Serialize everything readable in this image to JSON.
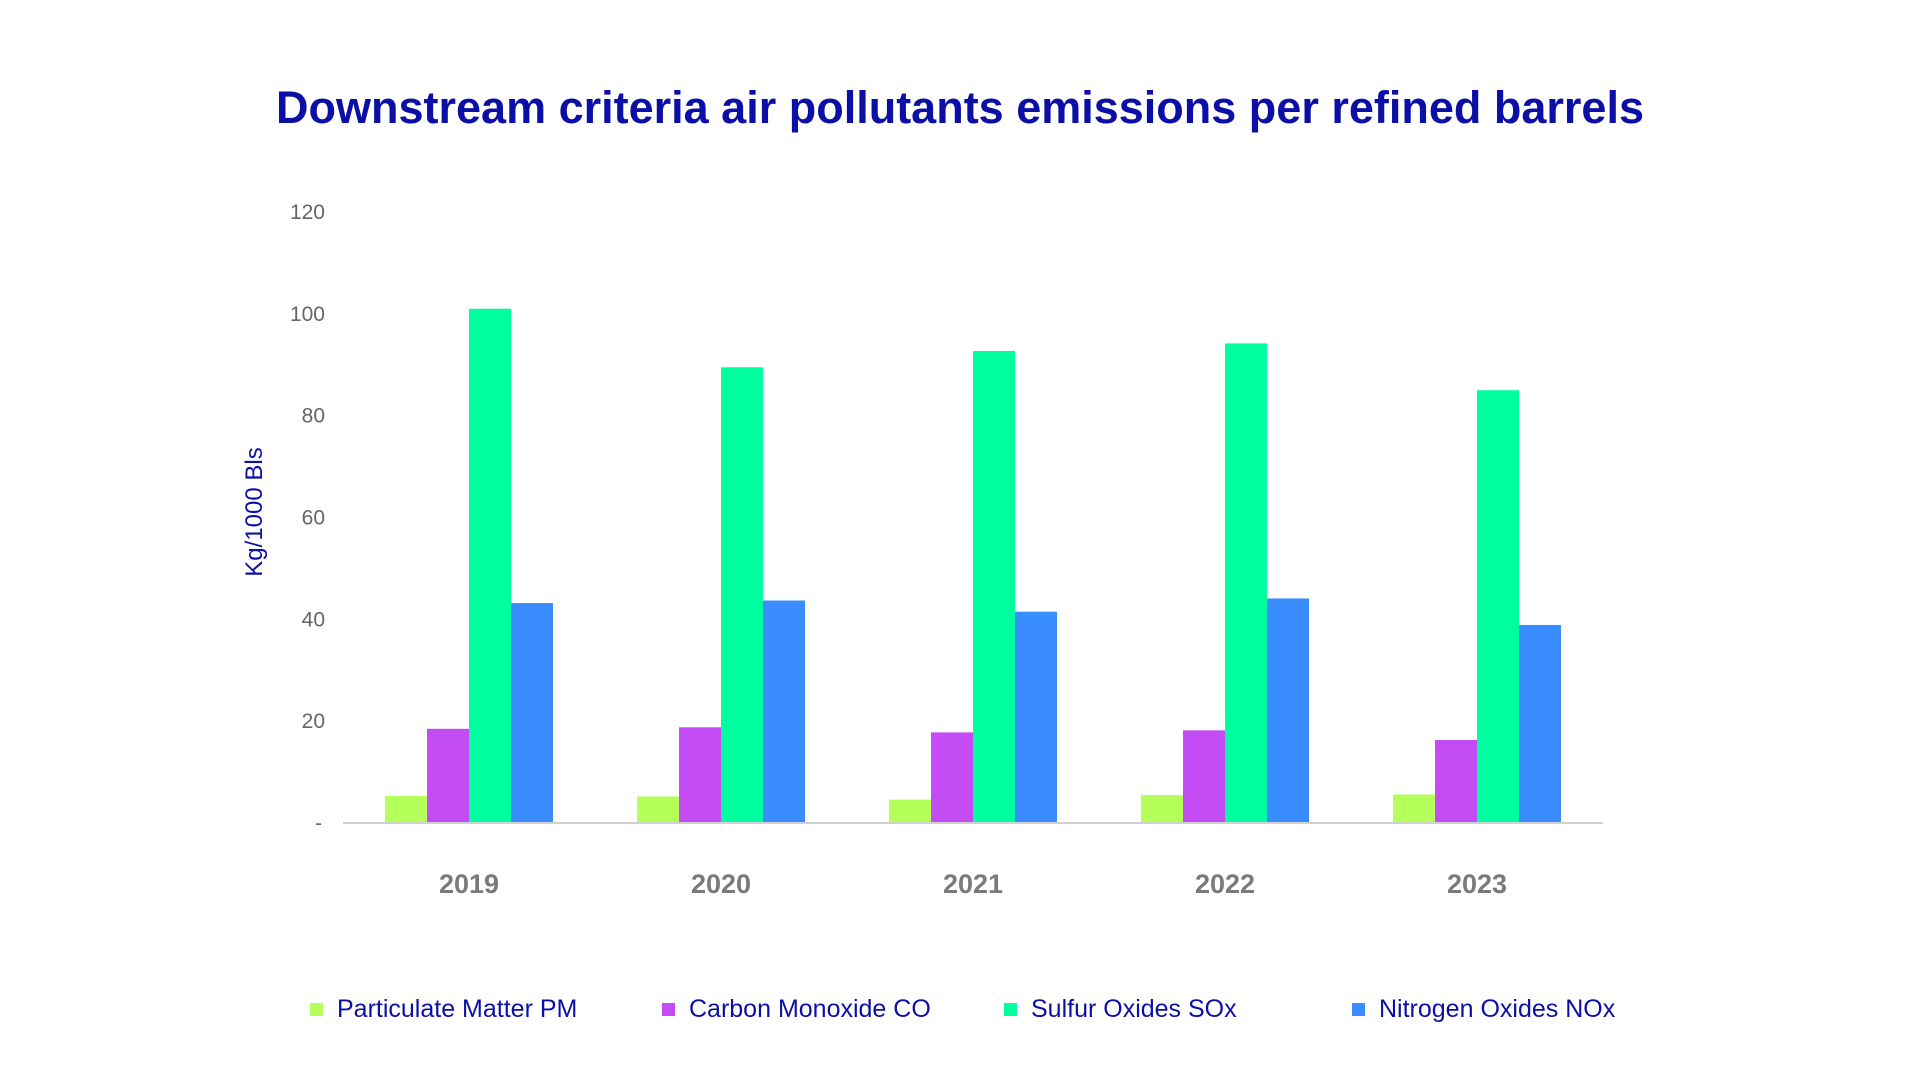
{
  "chart_data": {
    "type": "bar",
    "title": "Downstream criteria air pollutants emissions per refined barrels",
    "ylabel": "Kg/1000 Bls",
    "xlabel": "",
    "categories": [
      "2019",
      "2020",
      "2021",
      "2022",
      "2023"
    ],
    "ylim": [
      0,
      120
    ],
    "yticks": [
      "-",
      "20",
      "40",
      "60",
      "80",
      "100",
      "120"
    ],
    "grid": false,
    "legend_position": "bottom",
    "series": [
      {
        "name": "Particulate Matter PM",
        "color": "#b5ff5a",
        "values": [
          5.3,
          5.2,
          4.6,
          5.5,
          5.6
        ]
      },
      {
        "name": "Carbon Monoxide CO",
        "color": "#c44cf5",
        "values": [
          18.5,
          18.8,
          17.8,
          18.2,
          16.3
        ]
      },
      {
        "name": "Sulfur Oxides SOx",
        "color": "#00ff9f",
        "values": [
          101.0,
          89.5,
          92.7,
          94.2,
          85.0
        ]
      },
      {
        "name": "Nitrogen Oxides NOx",
        "color": "#3a8dff",
        "values": [
          43.2,
          43.7,
          41.5,
          44.1,
          38.9
        ]
      }
    ],
    "colors": {
      "title": "#0c0fa6",
      "ylabel": "#0c0fa6",
      "legend_text": "#0c0fa6",
      "tick": "#666666",
      "category": "#7a7a7a",
      "axis": "#d0d0d0"
    }
  }
}
